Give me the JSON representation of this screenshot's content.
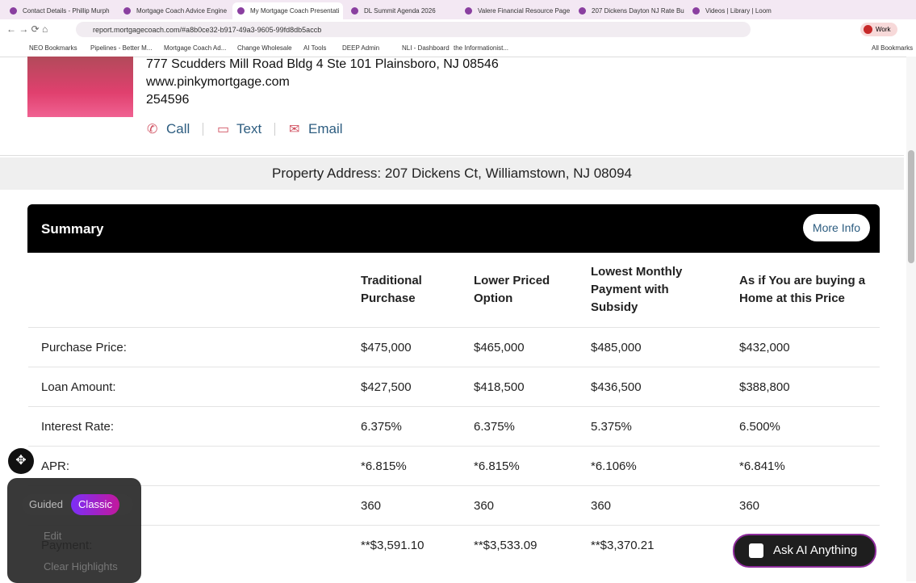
{
  "browser": {
    "tabs": [
      "Contact Details - Phillip Murph",
      "Mortgage Coach Advice Engine",
      "My Mortgage Coach Presentati",
      "DL Summit Agenda 2026",
      "Valere Financial Resource Page",
      "207 Dickens Dayton NJ Rate Bu",
      "Videos | Library | Loom"
    ],
    "url": "report.mortgagecoach.com/#a8b0ce32-b917-49a3-9605-99fd8db5accb",
    "profile": "Work",
    "bookmarks": [
      "NEO Bookmarks",
      "Pipelines - Better M...",
      "Mortgage Coach Ad...",
      "Change Wholesale",
      "AI Tools",
      "DEEP Admin",
      "NLI - Dashboard",
      "the Informationist..."
    ],
    "all_bookmarks": "All Bookmarks"
  },
  "contact": {
    "address": "777 Scudders Mill Road Bldg 4 Ste 101 Plainsboro, NJ 08546",
    "website": "www.pinkymortgage.com",
    "nmls": "254596",
    "actions": [
      "Call",
      "Text",
      "Email"
    ]
  },
  "property": "Property Address: 207 Dickens Ct, Williamstown, NJ 08094",
  "summary": {
    "title": "Summary",
    "button": "More Info",
    "columns": [
      "Traditional Purchase",
      "Lower Priced Option",
      "Lowest Monthly Payment with Subsidy",
      "As if You are buying a Home at this Price"
    ],
    "rows": [
      {
        "label": "Purchase Price:",
        "values": [
          "$475,000",
          "$465,000",
          "$485,000",
          "$432,000"
        ]
      },
      {
        "label": "Loan Amount:",
        "values": [
          "$427,500",
          "$418,500",
          "$436,500",
          "$388,800"
        ]
      },
      {
        "label": "Interest Rate:",
        "values": [
          "6.375%",
          "6.375%",
          "5.375%",
          "6.500%"
        ]
      },
      {
        "label": "APR:",
        "values": [
          "*6.815%",
          "*6.815%",
          "*6.106%",
          "*6.841%"
        ]
      },
      {
        "values": [
          "360",
          "360",
          "360",
          "360"
        ]
      },
      {
        "label": "Payment:",
        "values": [
          "**$3,591.10",
          "**$3,533.09",
          "**$3,370.21"
        ]
      }
    ]
  },
  "panel": {
    "modes": [
      "Guided",
      "Classic"
    ],
    "edit": "Edit",
    "clear": "Clear Highlights"
  },
  "ask_ai": "Ask AI Anything"
}
